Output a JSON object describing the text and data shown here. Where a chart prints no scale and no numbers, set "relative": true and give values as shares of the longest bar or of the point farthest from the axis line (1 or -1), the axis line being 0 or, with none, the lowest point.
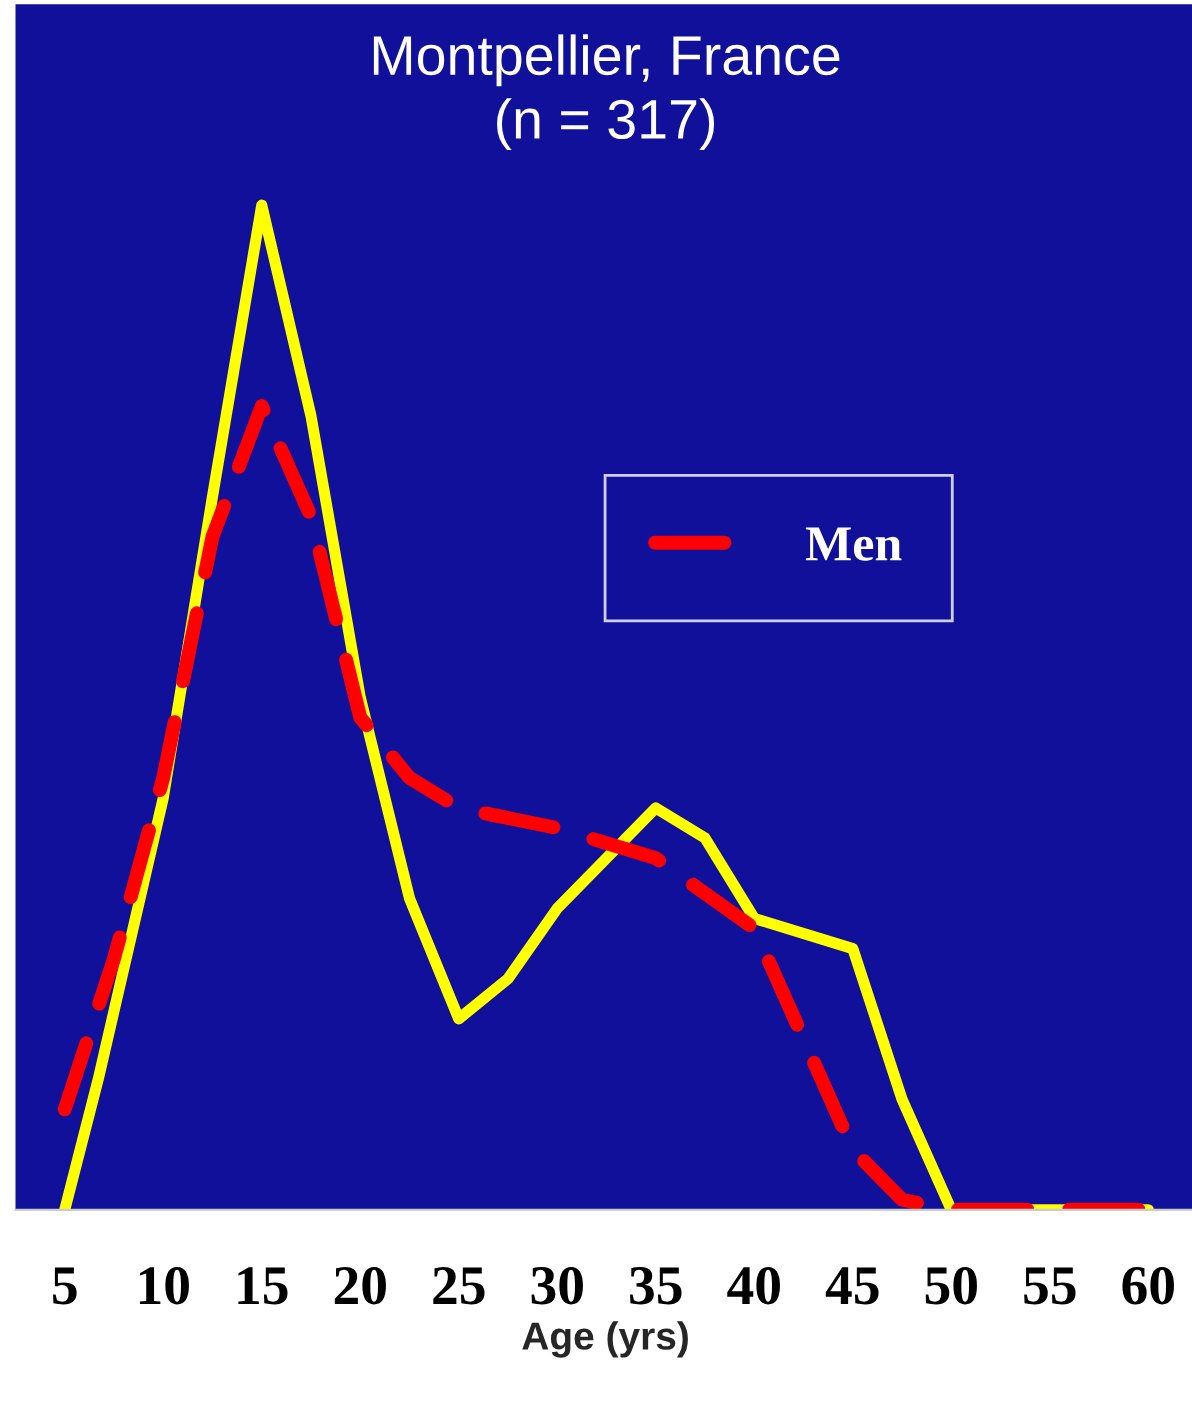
{
  "chart_data": {
    "type": "line",
    "title": "Montpellier, France\n(n = 317)",
    "xlabel": "Age (yrs)",
    "relative": true,
    "xlim": [
      2.5,
      62.4
    ],
    "xticks": [
      5,
      10,
      15,
      20,
      25,
      30,
      35,
      40,
      45,
      50,
      55,
      60
    ],
    "legend": "top right",
    "grid": false,
    "series": [
      {
        "color": "#ffff00",
        "line_style": "solid",
        "x": [
          5,
          6.7,
          10,
          12.5,
          15,
          17.5,
          20,
          22.5,
          25,
          27.5,
          30,
          35,
          37.5,
          40,
          45,
          47.5,
          50,
          55,
          60
        ],
        "values": [
          0,
          0.13,
          0.41,
          0.71,
          1.0,
          0.79,
          0.51,
          0.31,
          0.19,
          0.23,
          0.3,
          0.4,
          0.37,
          0.29,
          0.26,
          0.11,
          0,
          0,
          0
        ]
      },
      {
        "name": "Men",
        "color": "#ff0000",
        "line_style": "dashed",
        "x": [
          5,
          7.5,
          10,
          12.5,
          15,
          17.5,
          20,
          22.5,
          25,
          30,
          35,
          40,
          42.5,
          45,
          47.5,
          50,
          55,
          60
        ],
        "values": [
          0.1,
          0.25,
          0.43,
          0.67,
          0.8,
          0.69,
          0.49,
          0.43,
          0.4,
          0.38,
          0.35,
          0.28,
          0.17,
          0.06,
          0.01,
          0,
          0,
          0
        ]
      }
    ]
  }
}
